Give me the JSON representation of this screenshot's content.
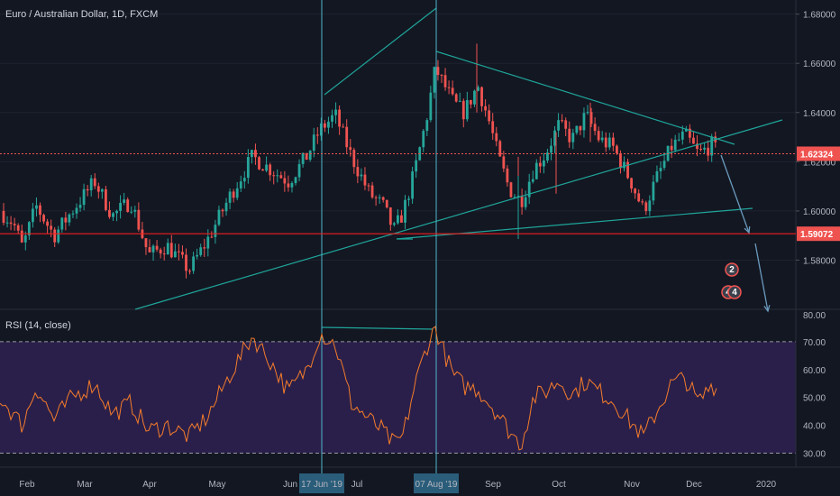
{
  "header": {
    "title": "Euro / Australian Dollar, 1D, FXCM",
    "rsi_title": "RSI (14, close)"
  },
  "colors": {
    "background": "#131722",
    "up": "#26a69a",
    "down": "#ef5350",
    "rsi_line": "#f57c2b",
    "rsi_band": "#2a1f4a",
    "trend": "#1fa59a",
    "current_line": "#ef5350",
    "support_line": "#ef1f1f"
  },
  "price_axis": {
    "ticks": [
      "1.68000",
      "1.66000",
      "1.64000",
      "1.62000",
      "1.60000",
      "1.58000"
    ]
  },
  "rsi_axis": {
    "ticks": [
      "80.00",
      "70.00",
      "60.00",
      "50.00",
      "40.00",
      "30.00"
    ]
  },
  "time_axis": {
    "labels": [
      "Feb",
      "Mar",
      "Apr",
      "May",
      "Jun",
      "Jul",
      "Sep",
      "Oct",
      "Nov",
      "Dec",
      "2020"
    ],
    "highlight_labels": [
      "17 Jun '19",
      "07 Aug '19"
    ]
  },
  "tags": {
    "current_price": "1.62324",
    "support": "1.59072"
  },
  "badges": [
    {
      "text": "2"
    },
    {
      "text": "4"
    },
    {
      "text": "4"
    }
  ],
  "chart_data": {
    "type": "candlestick",
    "instrument": "Euro / Australian Dollar",
    "timeframe": "1D",
    "ylim": [
      1.56,
      1.685
    ],
    "rsi_ylim": [
      25,
      80
    ],
    "current_price": 1.62324,
    "support_level": 1.59072,
    "rsi_levels": [
      70,
      30
    ],
    "price_path": [
      [
        0,
        1.6
      ],
      [
        15,
        1.595
      ],
      [
        25,
        1.585
      ],
      [
        40,
        1.602
      ],
      [
        60,
        1.59
      ],
      [
        80,
        1.6
      ],
      [
        105,
        1.612
      ],
      [
        125,
        1.598
      ],
      [
        145,
        1.604
      ],
      [
        165,
        1.582
      ],
      [
        185,
        1.586
      ],
      [
        210,
        1.576
      ],
      [
        230,
        1.588
      ],
      [
        255,
        1.606
      ],
      [
        280,
        1.622
      ],
      [
        300,
        1.617
      ],
      [
        320,
        1.612
      ],
      [
        340,
        1.622
      ],
      [
        355,
        1.633
      ],
      [
        372,
        1.639
      ],
      [
        390,
        1.622
      ],
      [
        410,
        1.607
      ],
      [
        425,
        1.602
      ],
      [
        437,
        1.592
      ],
      [
        447,
        1.599
      ],
      [
        460,
        1.616
      ],
      [
        473,
        1.637
      ],
      [
        483,
        1.658
      ],
      [
        493,
        1.651
      ],
      [
        503,
        1.644
      ],
      [
        515,
        1.64
      ],
      [
        530,
        1.651
      ],
      [
        543,
        1.636
      ],
      [
        553,
        1.622
      ],
      [
        565,
        1.609
      ],
      [
        578,
        1.604
      ],
      [
        592,
        1.617
      ],
      [
        605,
        1.623
      ],
      [
        620,
        1.635
      ],
      [
        635,
        1.629
      ],
      [
        650,
        1.639
      ],
      [
        665,
        1.629
      ],
      [
        680,
        1.626
      ],
      [
        700,
        1.612
      ],
      [
        714,
        1.6
      ],
      [
        727,
        1.612
      ],
      [
        745,
        1.626
      ],
      [
        760,
        1.631
      ],
      [
        775,
        1.623
      ],
      [
        790,
        1.627
      ],
      [
        797,
        1.623
      ]
    ],
    "rsi_path": [
      [
        0,
        50
      ],
      [
        15,
        44
      ],
      [
        25,
        40
      ],
      [
        40,
        54
      ],
      [
        60,
        42
      ],
      [
        80,
        50
      ],
      [
        105,
        55
      ],
      [
        125,
        44
      ],
      [
        145,
        48
      ],
      [
        165,
        38
      ],
      [
        185,
        40
      ],
      [
        210,
        36
      ],
      [
        230,
        43
      ],
      [
        255,
        58
      ],
      [
        280,
        72
      ],
      [
        300,
        63
      ],
      [
        320,
        52
      ],
      [
        340,
        60
      ],
      [
        355,
        73
      ],
      [
        372,
        69
      ],
      [
        390,
        48
      ],
      [
        410,
        42
      ],
      [
        425,
        38
      ],
      [
        437,
        33
      ],
      [
        447,
        36
      ],
      [
        460,
        54
      ],
      [
        473,
        68
      ],
      [
        483,
        75
      ],
      [
        493,
        66
      ],
      [
        503,
        58
      ],
      [
        515,
        54
      ],
      [
        530,
        53
      ],
      [
        543,
        48
      ],
      [
        553,
        44
      ],
      [
        565,
        38
      ],
      [
        578,
        33
      ],
      [
        592,
        50
      ],
      [
        605,
        52
      ],
      [
        620,
        56
      ],
      [
        635,
        51
      ],
      [
        650,
        56
      ],
      [
        665,
        52
      ],
      [
        680,
        49
      ],
      [
        700,
        41
      ],
      [
        714,
        36
      ],
      [
        727,
        44
      ],
      [
        745,
        55
      ],
      [
        760,
        57
      ],
      [
        775,
        48
      ],
      [
        790,
        55
      ],
      [
        797,
        52
      ]
    ]
  }
}
